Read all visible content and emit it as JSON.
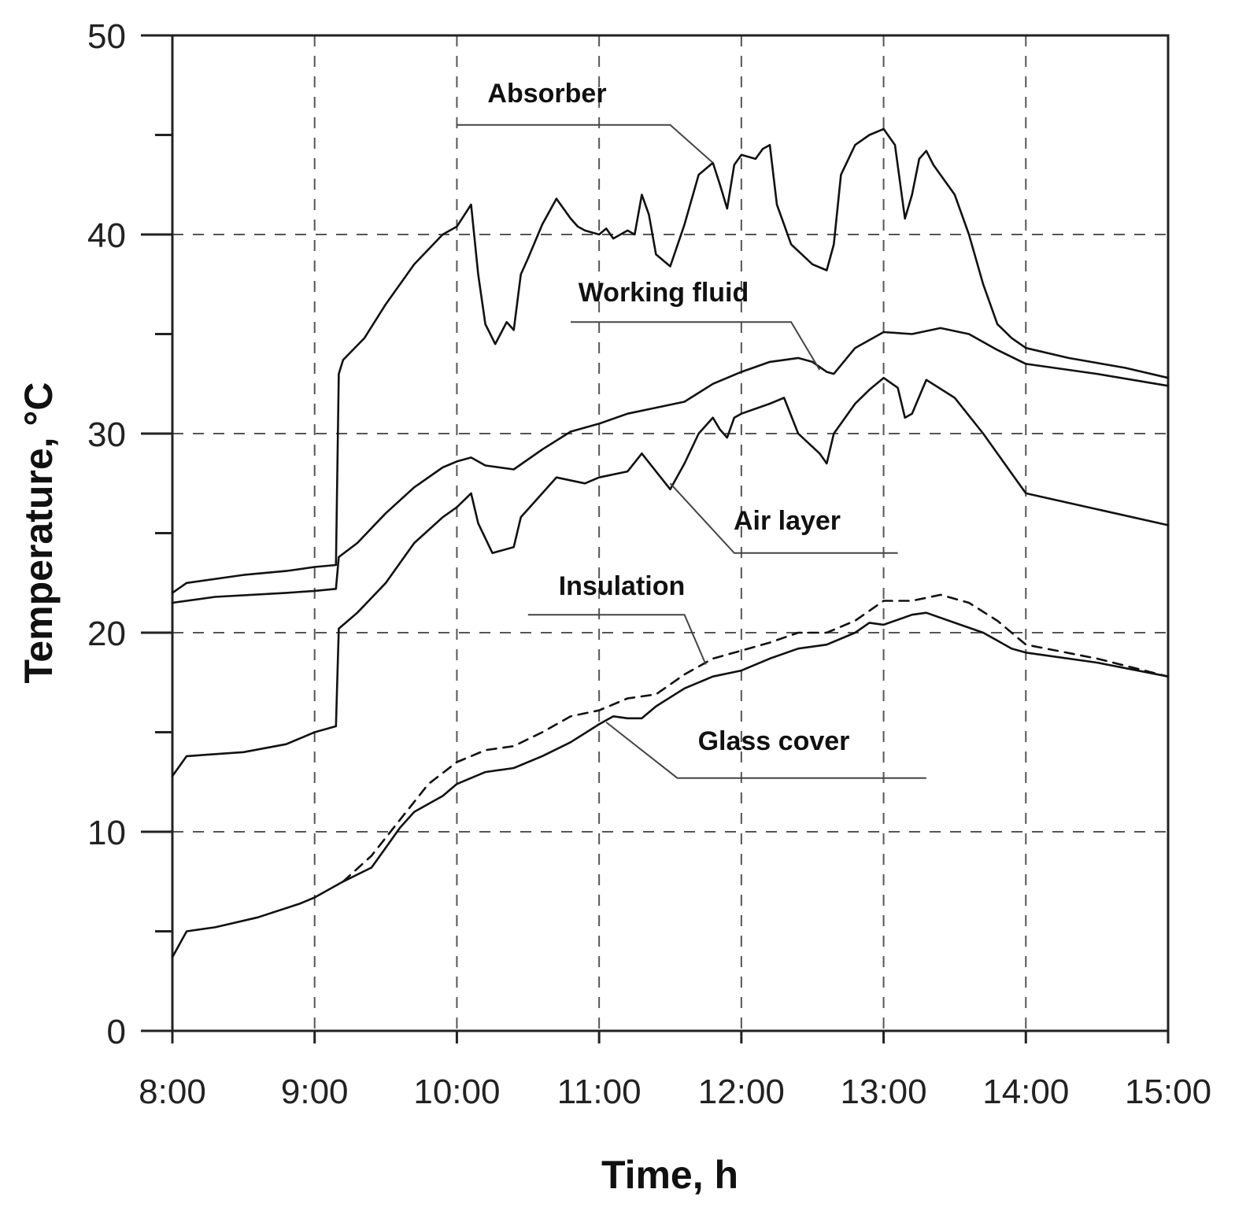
{
  "chart_data": {
    "type": "line",
    "title": "",
    "xlabel": "Time, h",
    "ylabel": "Temperature, °C",
    "xlim": [
      8,
      15
    ],
    "ylim": [
      0,
      50
    ],
    "x_ticks": [
      "8:00",
      "9:00",
      "10:00",
      "11:00",
      "12:00",
      "13:00",
      "14:00",
      "15:00"
    ],
    "y_ticks": [
      "0",
      "10",
      "20",
      "30",
      "40",
      "50"
    ],
    "grid": true,
    "series": [
      {
        "name": "Absorber",
        "style": "solid",
        "x": [
          8.0,
          8.1,
          8.5,
          8.8,
          9.0,
          9.15,
          9.17,
          9.2,
          9.35,
          9.5,
          9.7,
          9.9,
          10.0,
          10.1,
          10.15,
          10.2,
          10.27,
          10.35,
          10.4,
          10.45,
          10.5,
          10.6,
          10.7,
          10.8,
          10.85,
          10.9,
          11.0,
          11.05,
          11.1,
          11.2,
          11.25,
          11.3,
          11.35,
          11.4,
          11.5,
          11.6,
          11.7,
          11.8,
          11.85,
          11.9,
          11.95,
          12.0,
          12.1,
          12.15,
          12.2,
          12.25,
          12.3,
          12.35,
          12.5,
          12.6,
          12.65,
          12.7,
          12.8,
          12.9,
          13.0,
          13.08,
          13.15,
          13.2,
          13.25,
          13.3,
          13.35,
          13.5,
          13.6,
          13.7,
          13.8,
          13.9,
          14.0,
          14.3,
          14.7,
          15.0
        ],
        "y": [
          22.0,
          22.5,
          22.9,
          23.1,
          23.3,
          23.4,
          33.0,
          33.7,
          34.8,
          36.5,
          38.5,
          40.0,
          40.4,
          41.5,
          38.0,
          35.5,
          34.5,
          35.6,
          35.2,
          38.0,
          38.8,
          40.5,
          41.8,
          40.8,
          40.4,
          40.2,
          40.0,
          40.3,
          39.8,
          40.2,
          40.0,
          42.0,
          41.0,
          39.0,
          38.4,
          40.5,
          43.0,
          43.6,
          42.5,
          41.3,
          43.5,
          44.0,
          43.8,
          44.3,
          44.5,
          41.5,
          40.5,
          39.5,
          38.5,
          38.2,
          39.5,
          43.0,
          44.5,
          45.0,
          45.3,
          44.5,
          40.8,
          42.0,
          43.8,
          44.2,
          43.5,
          42.0,
          40.0,
          37.5,
          35.5,
          34.8,
          34.3,
          33.8,
          33.3,
          32.8
        ]
      },
      {
        "name": "Working fluid",
        "style": "solid",
        "x": [
          8.0,
          8.3,
          8.8,
          9.0,
          9.15,
          9.17,
          9.3,
          9.5,
          9.7,
          9.9,
          10.0,
          10.1,
          10.2,
          10.4,
          10.6,
          10.8,
          11.0,
          11.2,
          11.4,
          11.6,
          11.8,
          12.0,
          12.2,
          12.4,
          12.5,
          12.6,
          12.65,
          12.8,
          13.0,
          13.2,
          13.4,
          13.6,
          13.8,
          14.0,
          14.5,
          15.0
        ],
        "y": [
          21.5,
          21.8,
          22.0,
          22.1,
          22.2,
          23.8,
          24.5,
          26.0,
          27.3,
          28.3,
          28.6,
          28.8,
          28.4,
          28.2,
          29.2,
          30.1,
          30.5,
          31.0,
          31.3,
          31.6,
          32.5,
          33.1,
          33.6,
          33.8,
          33.6,
          33.1,
          33.0,
          34.3,
          35.1,
          35.0,
          35.3,
          35.0,
          34.2,
          33.5,
          33.0,
          32.4
        ]
      },
      {
        "name": "Air layer",
        "style": "solid",
        "x": [
          8.0,
          8.1,
          8.5,
          8.8,
          9.0,
          9.15,
          9.17,
          9.3,
          9.5,
          9.7,
          9.9,
          10.0,
          10.1,
          10.15,
          10.25,
          10.4,
          10.45,
          10.5,
          10.6,
          10.7,
          10.9,
          11.0,
          11.2,
          11.3,
          11.4,
          11.5,
          11.6,
          11.7,
          11.8,
          11.85,
          11.9,
          11.95,
          12.0,
          12.2,
          12.3,
          12.4,
          12.55,
          12.6,
          12.65,
          12.8,
          12.9,
          13.0,
          13.1,
          13.15,
          13.2,
          13.3,
          13.5,
          13.7,
          13.9,
          14.0,
          14.5,
          15.0
        ],
        "y": [
          12.8,
          13.8,
          14.0,
          14.4,
          15.0,
          15.3,
          20.2,
          21.0,
          22.5,
          24.5,
          25.8,
          26.3,
          27.0,
          25.5,
          24.0,
          24.3,
          25.8,
          26.2,
          27.0,
          27.8,
          27.5,
          27.8,
          28.1,
          29.0,
          28.1,
          27.2,
          28.5,
          30.0,
          30.8,
          30.2,
          29.8,
          30.8,
          31.0,
          31.5,
          31.8,
          30.0,
          29.0,
          28.5,
          30.0,
          31.5,
          32.2,
          32.8,
          32.3,
          30.8,
          31.0,
          32.7,
          31.8,
          30.0,
          28.0,
          27.0,
          26.2,
          25.4
        ]
      },
      {
        "name": "Insulation",
        "style": "dashed",
        "x": [
          9.2,
          9.4,
          9.6,
          9.8,
          10.0,
          10.2,
          10.4,
          10.6,
          10.8,
          11.0,
          11.2,
          11.4,
          11.6,
          11.8,
          12.0,
          12.2,
          12.4,
          12.6,
          12.8,
          13.0,
          13.2,
          13.4,
          13.6,
          13.8,
          14.0,
          14.5,
          15.0
        ],
        "y": [
          7.5,
          8.8,
          10.6,
          12.4,
          13.5,
          14.1,
          14.3,
          15.0,
          15.8,
          16.1,
          16.7,
          16.9,
          17.9,
          18.7,
          19.1,
          19.5,
          20.0,
          20.0,
          20.6,
          21.6,
          21.6,
          21.9,
          21.5,
          20.6,
          19.4,
          18.7,
          17.8
        ]
      },
      {
        "name": "Glass cover",
        "style": "solid",
        "x": [
          8.0,
          8.1,
          8.3,
          8.6,
          8.9,
          9.0,
          9.2,
          9.4,
          9.5,
          9.6,
          9.7,
          9.9,
          10.0,
          10.2,
          10.4,
          10.6,
          10.8,
          11.0,
          11.1,
          11.2,
          11.3,
          11.4,
          11.6,
          11.8,
          12.0,
          12.2,
          12.4,
          12.6,
          12.8,
          12.9,
          13.0,
          13.2,
          13.3,
          13.5,
          13.7,
          13.9,
          14.0,
          14.5,
          15.0
        ],
        "y": [
          3.7,
          5.0,
          5.2,
          5.7,
          6.4,
          6.7,
          7.5,
          8.2,
          9.2,
          10.2,
          11.0,
          11.8,
          12.4,
          13.0,
          13.2,
          13.8,
          14.5,
          15.4,
          15.8,
          15.7,
          15.7,
          16.3,
          17.2,
          17.8,
          18.1,
          18.7,
          19.2,
          19.4,
          20.0,
          20.5,
          20.4,
          20.9,
          21.0,
          20.5,
          20.0,
          19.2,
          19.0,
          18.5,
          17.8
        ]
      }
    ]
  }
}
